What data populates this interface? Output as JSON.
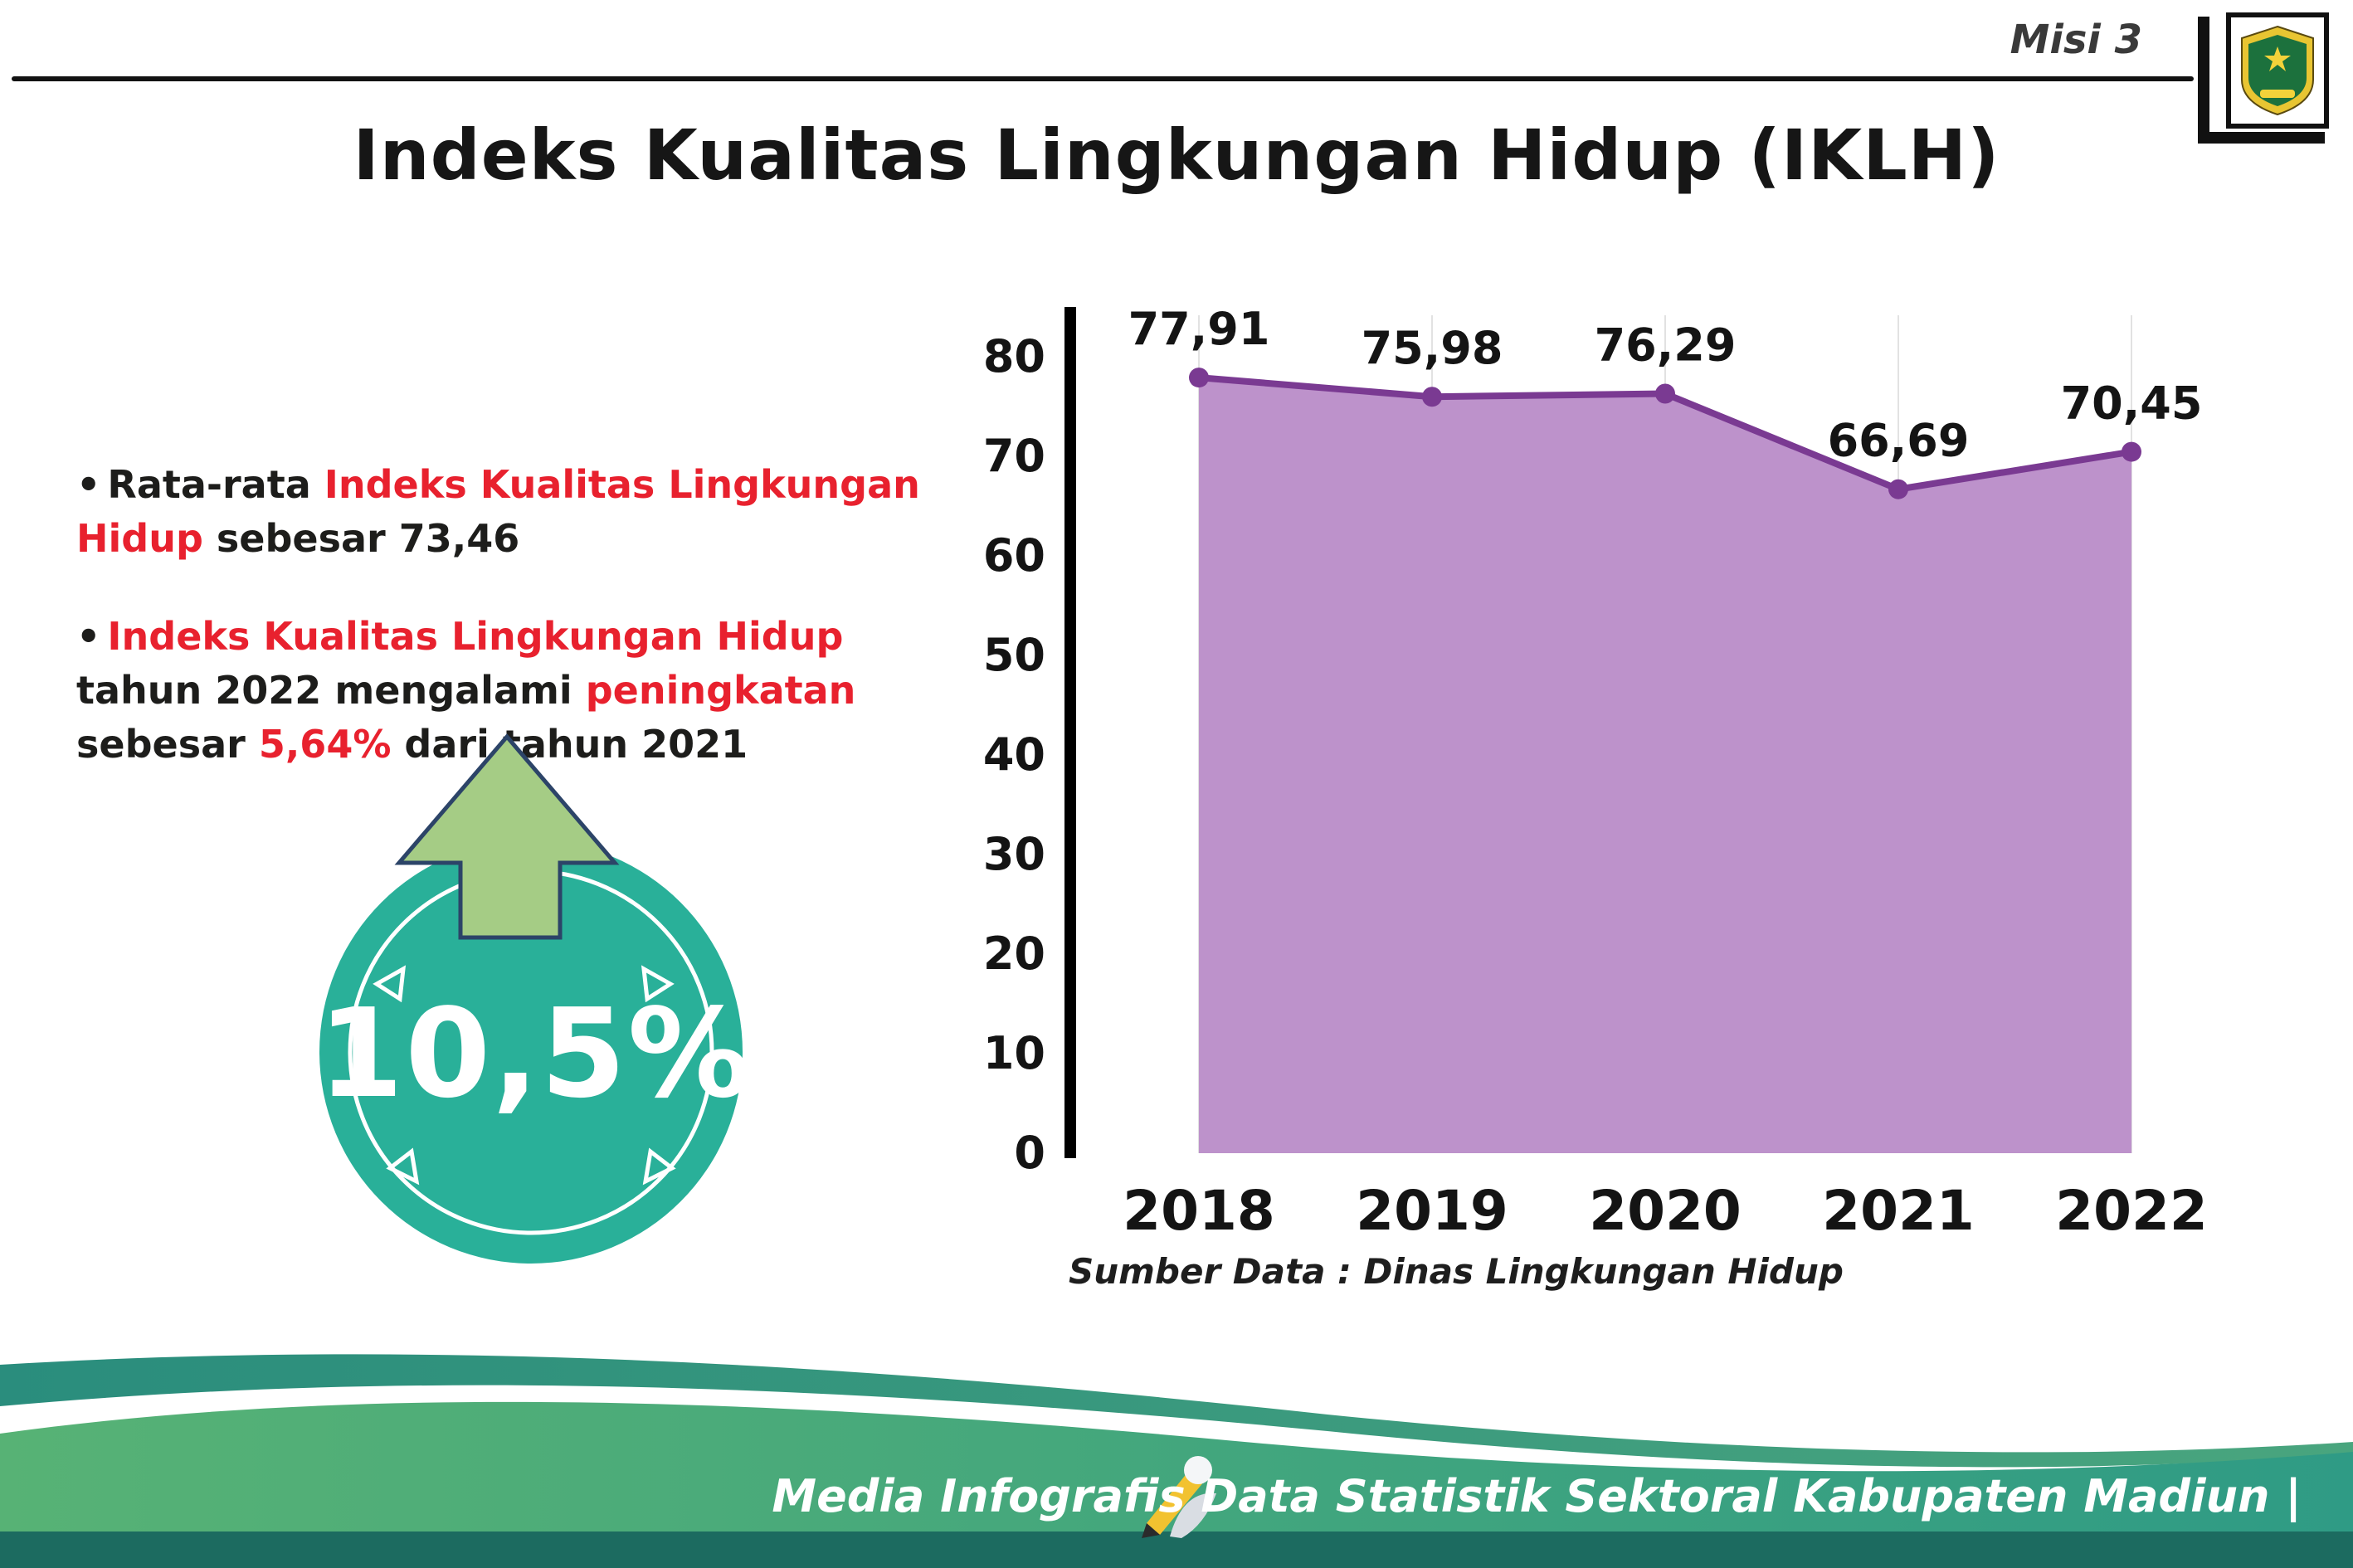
{
  "page": {
    "misi": "Misi 3",
    "title": "Indeks Kualitas Lingkungan Hidup (IKLH)",
    "source": "Sumber Data : Dinas Lingkungan Hidup",
    "footer": "Media Infografis Data Statistik Sektoral Kabupaten Madiun |"
  },
  "bullets": [
    {
      "segments": [
        {
          "text": "Rata-rata ",
          "color": "black"
        },
        {
          "text": "Indeks Kualitas Lingkungan Hidup",
          "color": "red"
        },
        {
          "text": " sebesar 73,46",
          "color": "black"
        }
      ]
    },
    {
      "segments": [
        {
          "text": "Indeks Kualitas Lingkungan Hidup",
          "color": "red"
        },
        {
          "text": " tahun 2022 mengalami ",
          "color": "black"
        },
        {
          "text": "peningkatan",
          "color": "red"
        },
        {
          "text": " sebesar ",
          "color": "black"
        },
        {
          "text": "5,64%",
          "color": "red"
        },
        {
          "text": " dari tahun 2021",
          "color": "black"
        }
      ]
    }
  ],
  "badge": {
    "value": "10,5%"
  },
  "chart_data": {
    "type": "area",
    "categories": [
      "2018",
      "2019",
      "2020",
      "2021",
      "2022"
    ],
    "values": [
      77.91,
      75.98,
      76.29,
      66.69,
      70.45
    ],
    "value_labels": [
      "77,91",
      "75,98",
      "76,29",
      "66,69",
      "70,45"
    ],
    "title": "",
    "xlabel": "",
    "ylabel": "",
    "ylim": [
      0,
      80
    ],
    "yticks": [
      0,
      10,
      20,
      30,
      40,
      50,
      60,
      70,
      80
    ],
    "grid": "vertical-light",
    "legend": "none",
    "colors": {
      "fill": "#bd92cb",
      "line": "#7a3a92",
      "point": "#7a3a92"
    }
  },
  "colors": {
    "accent-red": "#e8212e",
    "text-black": "#1d1d1b",
    "badge-teal": "#29b099",
    "arrow-green": "#a5cc85",
    "footer-green": "#4fae77",
    "footer-teal": "#2f9183",
    "footer-dark": "#1c6b60"
  }
}
